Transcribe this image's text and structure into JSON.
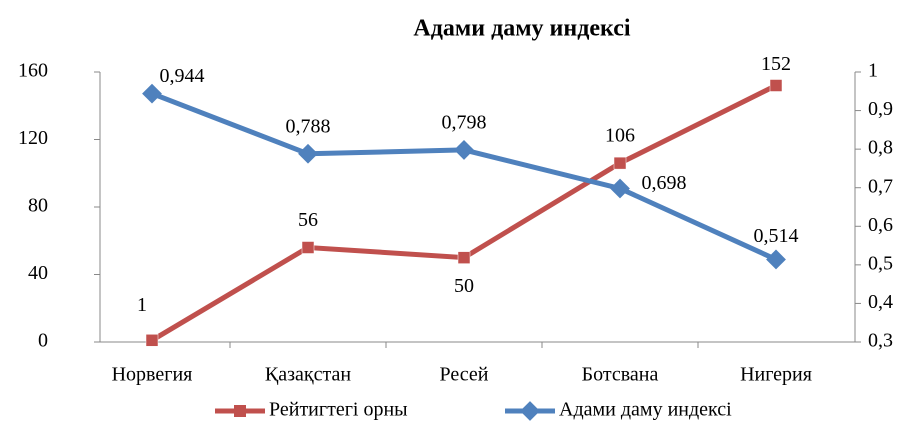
{
  "chart_data": {
    "type": "line",
    "title": "Адами даму индексі",
    "categories": [
      "Норвегия",
      "Қазақстан",
      "Ресей",
      "Ботсвана",
      "Нигерия"
    ],
    "series": [
      {
        "name": "Рейтигтегі орны",
        "color": "#c0504d",
        "values": [
          1,
          56,
          50,
          106,
          152
        ]
      },
      {
        "name": "Адами даму индексі",
        "color": "#4f81bd",
        "axis": "y2",
        "values": [
          0.944,
          0.788,
          0.798,
          0.698,
          0.514
        ],
        "value_labels": [
          "0,944",
          "0,788",
          "0,798",
          "0,698",
          "0,514"
        ]
      }
    ],
    "ylim": [
      0,
      160
    ],
    "yticks": [
      0,
      40,
      80,
      120,
      160
    ],
    "y2lim": [
      0.3,
      1
    ],
    "y2ticks": [
      {
        "value": 0.3,
        "label": "0,3"
      },
      {
        "value": 0.4,
        "label": "0,4"
      },
      {
        "value": 0.5,
        "label": "0,5"
      },
      {
        "value": 0.6,
        "label": "0,6"
      },
      {
        "value": 0.7,
        "label": "0,7"
      },
      {
        "value": 0.8,
        "label": "0,8"
      },
      {
        "value": 0.9,
        "label": "0,9"
      },
      1
    ],
    "legend": "bottom"
  }
}
